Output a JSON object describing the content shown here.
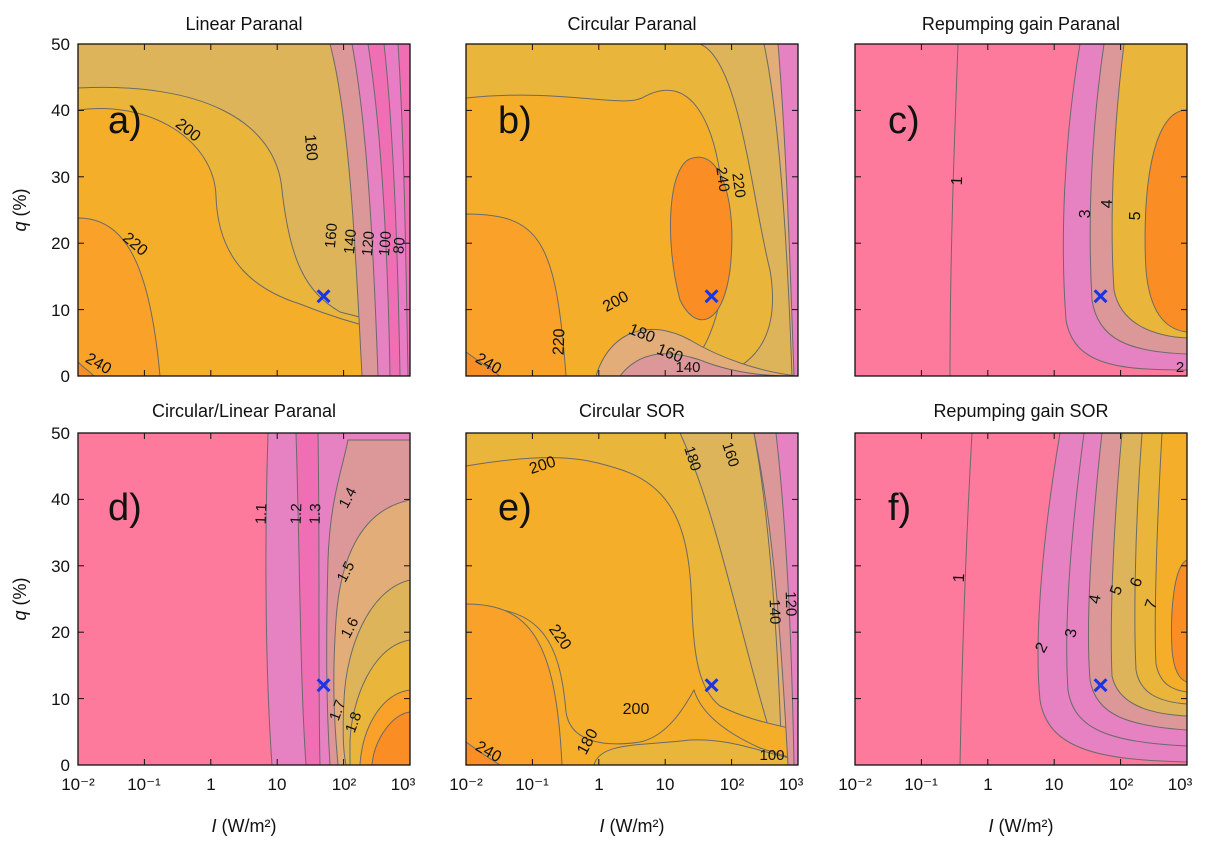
{
  "figure": {
    "x_axis": {
      "label_main": "I",
      "label_unit": "(W/m²)",
      "ticks": [
        "10⁻²",
        "10⁻¹",
        "1",
        "10",
        "10²",
        "10³"
      ],
      "scale": "log",
      "range": [
        0.01,
        1000
      ]
    },
    "y_axis": {
      "label_main": "q",
      "label_unit": "(%)",
      "ticks": [
        "0",
        "10",
        "20",
        "30",
        "40",
        "50"
      ],
      "range": [
        0,
        50
      ]
    },
    "marker": {
      "symbol": "×",
      "I": 50,
      "q": 12,
      "color": "#1a35e6"
    },
    "colors": {
      "c1": "#fd7a9c",
      "c2": "#f06fb4",
      "c3": "#e681c2",
      "c4": "#dc9898",
      "c5": "#e2ad78",
      "c6": "#ddb45a",
      "c7": "#e9b53a",
      "c8": "#f5ae2a",
      "c9": "#f9a128",
      "c10": "#fa8e24",
      "line": "#6a6a6a"
    }
  },
  "chart_data": [
    {
      "type": "contour",
      "panel": "a)",
      "title": "Linear Paranal",
      "xlim": [
        0.01,
        1000
      ],
      "ylim": [
        0,
        50
      ],
      "contour_levels": [
        80,
        100,
        120,
        140,
        160,
        180,
        200,
        220,
        240
      ],
      "contour_labels": [
        "200",
        "180",
        "220",
        "160",
        "140",
        "120",
        "100",
        "80",
        "240"
      ]
    },
    {
      "type": "contour",
      "panel": "b)",
      "title": "Circular Paranal",
      "xlim": [
        0.01,
        1000
      ],
      "ylim": [
        0,
        50
      ],
      "contour_levels": [
        140,
        160,
        180,
        200,
        220,
        240
      ],
      "contour_labels": [
        "240",
        "220",
        "200",
        "220",
        "180",
        "160",
        "140",
        "240"
      ]
    },
    {
      "type": "contour",
      "panel": "c)",
      "title": "Repumping gain Paranal",
      "xlim": [
        0.01,
        1000
      ],
      "ylim": [
        0,
        50
      ],
      "contour_levels": [
        1,
        2,
        3,
        4,
        5
      ],
      "contour_labels": [
        "1",
        "3",
        "4",
        "5",
        "2"
      ]
    },
    {
      "type": "contour",
      "panel": "d)",
      "title": "Circular/Linear Paranal",
      "xlim": [
        0.01,
        1000
      ],
      "ylim": [
        0,
        50
      ],
      "contour_levels": [
        1.1,
        1.2,
        1.3,
        1.4,
        1.5,
        1.6,
        1.7,
        1.8
      ],
      "contour_labels": [
        "1.1",
        "1.2",
        "1.3",
        "1.4",
        "1.5",
        "1.6",
        "1.7",
        "1.8"
      ]
    },
    {
      "type": "contour",
      "panel": "e)",
      "title": "Circular SOR",
      "xlim": [
        0.01,
        1000
      ],
      "ylim": [
        0,
        50
      ],
      "contour_levels": [
        100,
        120,
        140,
        160,
        180,
        200,
        220,
        240
      ],
      "contour_labels": [
        "200",
        "180",
        "160",
        "140",
        "120",
        "220",
        "200",
        "240",
        "180",
        "100"
      ]
    },
    {
      "type": "contour",
      "panel": "f)",
      "title": "Repumping gain SOR",
      "xlim": [
        0.01,
        1000
      ],
      "ylim": [
        0,
        50
      ],
      "contour_levels": [
        1,
        2,
        3,
        4,
        5,
        6,
        7
      ],
      "contour_labels": [
        "1",
        "2",
        "3",
        "4",
        "5",
        "6",
        "7"
      ]
    }
  ]
}
